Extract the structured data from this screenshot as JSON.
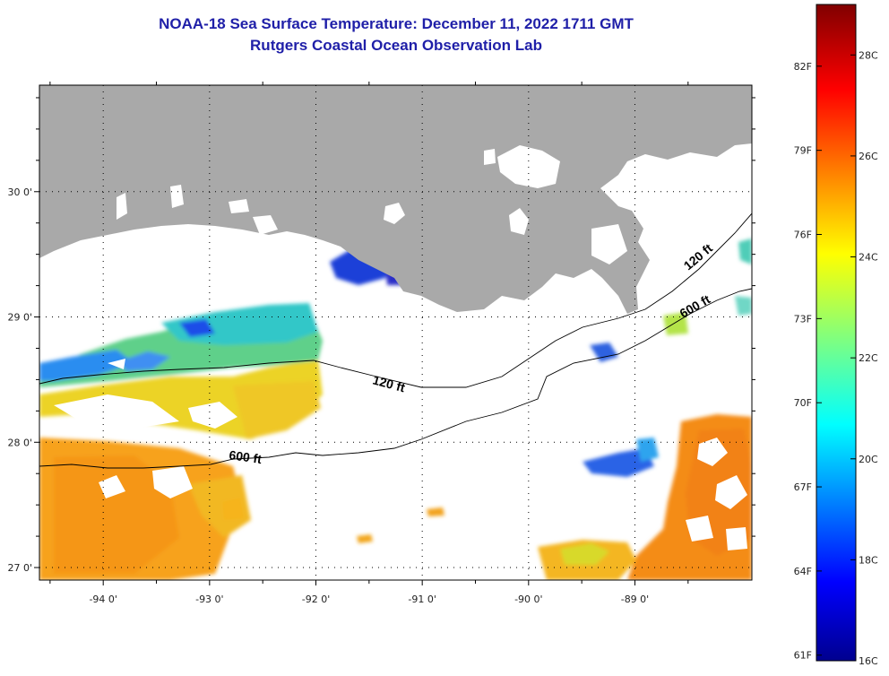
{
  "header": {
    "title": "NOAA-18 Sea Surface Temperature:  December 11, 2022 1711 GMT",
    "subtitle": "Rutgers Coastal Ocean Observation Lab"
  },
  "map": {
    "lon_range": [
      -94.6,
      -87.9
    ],
    "lat_range": [
      26.9,
      30.85
    ],
    "lon_ticks": [
      {
        "value": -94,
        "label": "-94 0'"
      },
      {
        "value": -93,
        "label": "-93 0'"
      },
      {
        "value": -92,
        "label": "-92 0'"
      },
      {
        "value": -91,
        "label": "-91 0'"
      },
      {
        "value": -90,
        "label": "-90 0'"
      },
      {
        "value": -89,
        "label": "-89 0'"
      }
    ],
    "lat_ticks": [
      {
        "value": 30,
        "label": "30 0'"
      },
      {
        "value": 29,
        "label": "29 0'"
      },
      {
        "value": 28,
        "label": "28 0'"
      },
      {
        "value": 27,
        "label": "27 0'"
      }
    ],
    "grid": "dotted",
    "colors": {
      "land": "#a9a9a9",
      "ocean_no_data": "#ffffff",
      "contour": "#000000"
    }
  },
  "contours": [
    {
      "label": "120 ft",
      "at": "near 29.5N -88.6W and 28.5N -91.4W"
    },
    {
      "label": "600 ft",
      "at": "near 29.1N -88.6W and 27.9N -92.7W"
    }
  ],
  "labels": {
    "c120_east": "120 ft",
    "c120_mid": "120 ft",
    "c600_east": "600 ft",
    "c600_west": "600 ft"
  },
  "colorbar": {
    "fahrenheit": [
      "82F",
      "79F",
      "76F",
      "73F",
      "70F",
      "67F",
      "64F",
      "61F"
    ],
    "celsius": [
      "28C",
      "26C",
      "24C",
      "22C",
      "20C",
      "18C",
      "16C"
    ],
    "colormap": "jet",
    "range_c": [
      16,
      29
    ]
  }
}
